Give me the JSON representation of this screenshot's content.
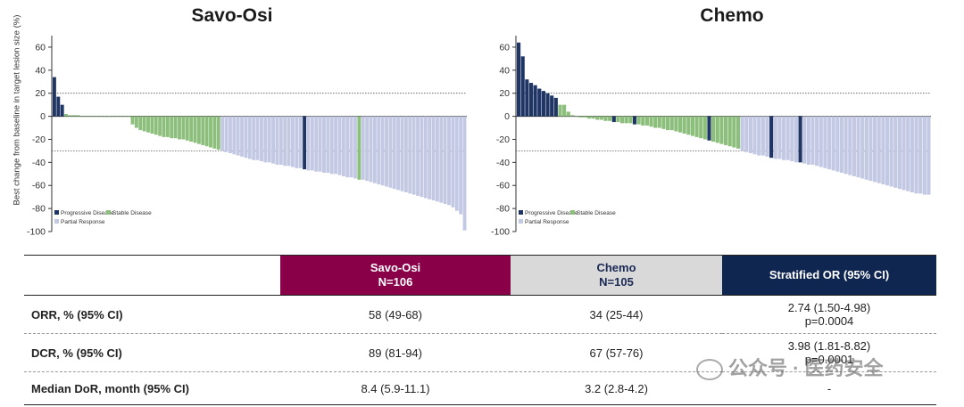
{
  "chart_data": [
    {
      "type": "bar",
      "title": "Savo-Osi",
      "ylabel": "Best change from baseline in target lesion size (%)",
      "ylim": [
        -100,
        70
      ],
      "yticks": [
        60,
        40,
        20,
        0,
        -20,
        -40,
        -60,
        -80,
        -100
      ],
      "reference_lines": [
        20,
        -30
      ],
      "legend": [
        "Progressive Disease",
        "Stable Disease",
        "Partial Response"
      ],
      "legend_position": "bottom-left",
      "colors": {
        "Progressive Disease": "#1f3564",
        "Stable Disease": "#8cbf7c",
        "Partial Response": "#c3c8e3"
      },
      "values": [
        34,
        17,
        10,
        2,
        1,
        1,
        1,
        0,
        0,
        0,
        0,
        0,
        0,
        0,
        0,
        0,
        0,
        0,
        0,
        0,
        -7,
        -10,
        -12,
        -13,
        -14,
        -15,
        -16,
        -17,
        -18,
        -18,
        -19,
        -19,
        -20,
        -20,
        -21,
        -22,
        -23,
        -24,
        -25,
        -26,
        -27,
        -28,
        -29,
        -30,
        -31,
        -32,
        -33,
        -34,
        -35,
        -36,
        -37,
        -38,
        -38,
        -39,
        -40,
        -40,
        -41,
        -42,
        -42,
        -43,
        -43,
        -44,
        -45,
        -45,
        -46,
        -47,
        -47,
        -48,
        -48,
        -49,
        -49,
        -50,
        -50,
        -51,
        -52,
        -53,
        -53,
        -54,
        -55,
        -55,
        -56,
        -57,
        -58,
        -59,
        -60,
        -61,
        -62,
        -63,
        -64,
        -65,
        -66,
        -67,
        -68,
        -69,
        -70,
        -71,
        -72,
        -73,
        -74,
        -75,
        -76,
        -77,
        -79,
        -82,
        -85,
        -99
      ],
      "categories_by_bar": [
        "PD",
        "PD",
        "PD",
        "SD",
        "SD",
        "SD",
        "SD",
        "SD",
        "SD",
        "SD",
        "SD",
        "SD",
        "SD",
        "SD",
        "SD",
        "SD",
        "SD",
        "SD",
        "SD",
        "SD",
        "SD",
        "SD",
        "SD",
        "SD",
        "SD",
        "SD",
        "SD",
        "SD",
        "SD",
        "SD",
        "SD",
        "SD",
        "SD",
        "SD",
        "SD",
        "SD",
        "SD",
        "SD",
        "SD",
        "SD",
        "SD",
        "SD",
        "SD",
        "PR",
        "PR",
        "PR",
        "PR",
        "PR",
        "PR",
        "PR",
        "PR",
        "PR",
        "PR",
        "PR",
        "PR",
        "PR",
        "PR",
        "PR",
        "PR",
        "PR",
        "PR",
        "PR",
        "PR",
        "PR",
        "PD",
        "PR",
        "PR",
        "PR",
        "PR",
        "PR",
        "PR",
        "PR",
        "PR",
        "PR",
        "PR",
        "PR",
        "PR",
        "PR",
        "SD",
        "PR",
        "PR",
        "PR",
        "PR",
        "PR",
        "PR",
        "PR",
        "PR",
        "PR",
        "PR",
        "PR",
        "PR",
        "PR",
        "PR",
        "PR",
        "PR",
        "PR",
        "PR",
        "PR",
        "PR",
        "PR",
        "PR",
        "PR",
        "PR",
        "PR",
        "PR",
        "PR"
      ]
    },
    {
      "type": "bar",
      "title": "Chemo",
      "ylim": [
        -100,
        70
      ],
      "yticks": [
        60,
        40,
        20,
        0,
        -20,
        -40,
        -60,
        -80,
        -100
      ],
      "reference_lines": [
        20,
        -30
      ],
      "legend": [
        "Progressive Disease",
        "Stable Disease",
        "Partial Response"
      ],
      "legend_position": "bottom-left",
      "colors": {
        "Progressive Disease": "#1f3564",
        "Stable Disease": "#8cbf7c",
        "Partial Response": "#c3c8e3"
      },
      "values": [
        64,
        52,
        32,
        29,
        27,
        24,
        22,
        20,
        18,
        16,
        10,
        10,
        4,
        1,
        0,
        -1,
        -1,
        -2,
        -2,
        -3,
        -3,
        -4,
        -4,
        -5,
        -5,
        -6,
        -6,
        -6,
        -7,
        -7,
        -8,
        -8,
        -9,
        -10,
        -10,
        -11,
        -12,
        -12,
        -13,
        -14,
        -15,
        -16,
        -17,
        -18,
        -19,
        -20,
        -21,
        -22,
        -23,
        -24,
        -25,
        -26,
        -27,
        -28,
        -30,
        -31,
        -32,
        -33,
        -34,
        -34,
        -35,
        -36,
        -37,
        -37,
        -38,
        -38,
        -39,
        -40,
        -40,
        -41,
        -42,
        -42,
        -43,
        -44,
        -45,
        -46,
        -47,
        -48,
        -49,
        -50,
        -51,
        -52,
        -53,
        -54,
        -55,
        -56,
        -57,
        -58,
        -59,
        -60,
        -61,
        -62,
        -63,
        -64,
        -65,
        -66,
        -67,
        -67,
        -68,
        -68
      ],
      "categories_by_bar": [
        "PD",
        "PD",
        "PD",
        "PD",
        "PD",
        "PD",
        "PD",
        "PD",
        "PD",
        "PD",
        "SD",
        "SD",
        "SD",
        "SD",
        "SD",
        "SD",
        "SD",
        "SD",
        "SD",
        "SD",
        "SD",
        "SD",
        "SD",
        "PD",
        "SD",
        "SD",
        "SD",
        "SD",
        "PD",
        "SD",
        "SD",
        "SD",
        "SD",
        "SD",
        "SD",
        "SD",
        "SD",
        "SD",
        "SD",
        "SD",
        "SD",
        "SD",
        "SD",
        "SD",
        "SD",
        "SD",
        "PD",
        "SD",
        "SD",
        "SD",
        "SD",
        "SD",
        "SD",
        "SD",
        "PR",
        "PR",
        "PR",
        "PR",
        "PR",
        "PR",
        "PR",
        "PD",
        "PR",
        "PR",
        "PR",
        "PR",
        "PR",
        "PR",
        "PD",
        "PR",
        "PR",
        "PR",
        "PR",
        "PR",
        "PR",
        "PR",
        "PR",
        "PR",
        "PR",
        "PR",
        "PR",
        "PR",
        "PR",
        "PR",
        "PR",
        "PR",
        "PR",
        "PR",
        "PR",
        "PR",
        "PR",
        "PR",
        "PR",
        "PR",
        "PR",
        "PR",
        "PR",
        "PR",
        "PR",
        "PR"
      ]
    }
  ],
  "table": {
    "headers": {
      "savo": [
        "Savo-Osi",
        "N=106"
      ],
      "chemo": [
        "Chemo",
        "N=105"
      ],
      "or": "Stratified OR (95% CI)"
    },
    "rows": [
      {
        "label": "ORR, % (95% CI)",
        "savo": "58 (49-68)",
        "chemo": "34 (25-44)",
        "or": "2.74 (1.50-4.98)",
        "p": "p=0.0004"
      },
      {
        "label": "DCR, % (95% CI)",
        "savo": "89 (81-94)",
        "chemo": "67 (57-76)",
        "or": "3.98 (1.81-8.82)",
        "p": "p=0.0001"
      },
      {
        "label": "Median DoR, month (95% CI)",
        "savo": "8.4 (5.9-11.1)",
        "chemo": "3.2 (2.8-4.2)",
        "or": "-",
        "p": ""
      }
    ]
  },
  "watermark": "公众号 · 医药安全"
}
